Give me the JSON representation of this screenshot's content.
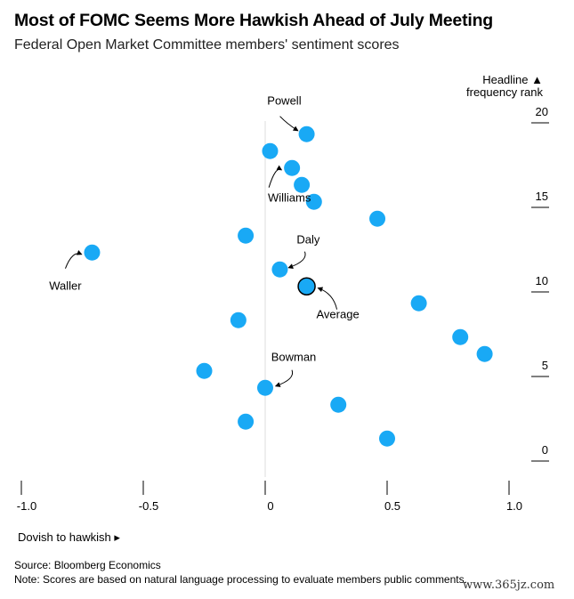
{
  "header": {
    "title": "Most of FOMC Seems More Hawkish Ahead of July Meeting",
    "subtitle": "Federal Open Market Committee members' sentiment scores"
  },
  "footer": {
    "x_direction": "Dovish to hawkish ▸",
    "source": "Source: Bloomberg Economics",
    "note": "Note: Scores are based on natural language processing to evaluate members public comments.",
    "watermark": "www.365jz.com"
  },
  "chart_data": {
    "type": "scatter",
    "title": "Most of FOMC Seems More Hawkish Ahead of July Meeting",
    "subtitle": "Federal Open Market Committee members' sentiment scores",
    "xlabel": "Dovish to hawkish ▸",
    "ylabel": "Headline ▲ frequency rank",
    "xlim": [
      -1.0,
      1.0
    ],
    "ylim": [
      0,
      20
    ],
    "x_ticks": [
      -1.0,
      -0.5,
      0,
      0.5,
      1.0
    ],
    "x_tick_labels": [
      "-1.0",
      "-0.5",
      "0",
      "0.5",
      "1.0"
    ],
    "y_ticks": [
      0,
      5,
      10,
      15,
      20
    ],
    "y_tick_labels": [
      "0",
      "5",
      "10",
      "15",
      "20"
    ],
    "grid": false,
    "zero_line": true,
    "colors": {
      "point": "#19a9f5",
      "average": "#19a9f5",
      "average_outline": "#000000",
      "zero_line": "#dddddd"
    },
    "points": [
      {
        "x": 0.17,
        "y": 18.7,
        "label": "Powell"
      },
      {
        "x": 0.02,
        "y": 17.7
      },
      {
        "x": 0.11,
        "y": 16.7,
        "label": "Williams"
      },
      {
        "x": 0.15,
        "y": 15.7
      },
      {
        "x": 0.2,
        "y": 14.7
      },
      {
        "x": 0.46,
        "y": 13.7
      },
      {
        "x": -0.08,
        "y": 12.7
      },
      {
        "x": -0.71,
        "y": 11.7,
        "label": "Waller"
      },
      {
        "x": 0.06,
        "y": 10.7,
        "label": "Daly"
      },
      {
        "x": 0.63,
        "y": 8.7
      },
      {
        "x": -0.11,
        "y": 7.7
      },
      {
        "x": 0.8,
        "y": 6.7
      },
      {
        "x": 0.9,
        "y": 5.7
      },
      {
        "x": -0.25,
        "y": 4.7
      },
      {
        "x": 0.0,
        "y": 3.7,
        "label": "Bowman"
      },
      {
        "x": 0.3,
        "y": 2.7
      },
      {
        "x": -0.08,
        "y": 1.7
      },
      {
        "x": 0.5,
        "y": 0.7
      }
    ],
    "average": {
      "x": 0.17,
      "y": 9.7,
      "label": "Average"
    }
  }
}
